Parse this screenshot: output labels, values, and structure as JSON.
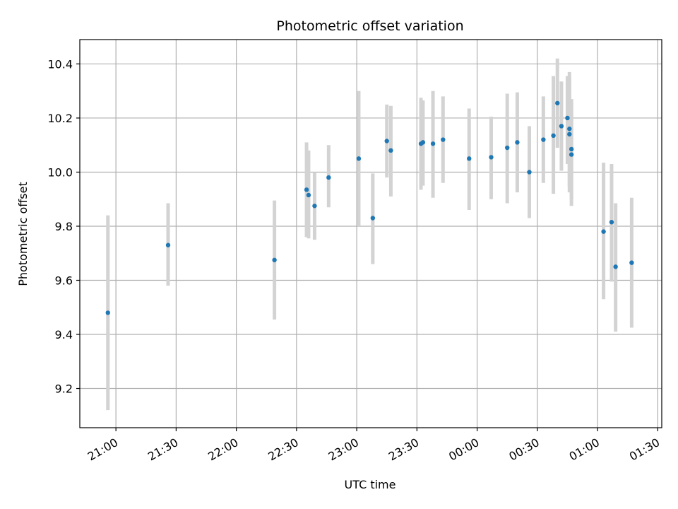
{
  "chart_data": {
    "type": "scatter",
    "title": "Photometric offset variation",
    "xlabel": "UTC time",
    "ylabel": "Photometric offset",
    "grid": true,
    "legend": "none",
    "colors": {
      "point": "#1f77b4",
      "errorbar": "#d3d3d3",
      "grid": "#b0b0b0",
      "axis": "#000000"
    },
    "xlim": [
      "20:42",
      "01:32"
    ],
    "ylim": [
      9.055,
      10.49
    ],
    "x_ticks": [
      "21:00",
      "21:30",
      "22:00",
      "22:30",
      "23:00",
      "23:30",
      "00:00",
      "00:30",
      "01:00",
      "01:30"
    ],
    "y_ticks": [
      "9.2",
      "9.4",
      "9.6",
      "9.8",
      "10.0",
      "10.2",
      "10.4"
    ],
    "points": [
      {
        "x": "20:56",
        "y": 9.48,
        "ylow": 9.12,
        "yhigh": 9.84
      },
      {
        "x": "21:26",
        "y": 9.73,
        "ylow": 9.58,
        "yhigh": 9.885
      },
      {
        "x": "22:19",
        "y": 9.675,
        "ylow": 9.455,
        "yhigh": 9.895
      },
      {
        "x": "22:35",
        "y": 9.935,
        "ylow": 9.76,
        "yhigh": 10.11
      },
      {
        "x": "22:36",
        "y": 9.915,
        "ylow": 9.755,
        "yhigh": 10.08
      },
      {
        "x": "22:39",
        "y": 9.875,
        "ylow": 9.75,
        "yhigh": 10.0
      },
      {
        "x": "22:46",
        "y": 9.98,
        "ylow": 9.87,
        "yhigh": 10.1
      },
      {
        "x": "23:01",
        "y": 10.05,
        "ylow": 9.8,
        "yhigh": 10.3
      },
      {
        "x": "23:08",
        "y": 9.83,
        "ylow": 9.66,
        "yhigh": 9.995
      },
      {
        "x": "23:15",
        "y": 10.115,
        "ylow": 9.98,
        "yhigh": 10.25
      },
      {
        "x": "23:17",
        "y": 10.08,
        "ylow": 9.91,
        "yhigh": 10.245
      },
      {
        "x": "23:32",
        "y": 10.105,
        "ylow": 9.935,
        "yhigh": 10.275
      },
      {
        "x": "23:33",
        "y": 10.11,
        "ylow": 9.95,
        "yhigh": 10.265
      },
      {
        "x": "23:38",
        "y": 10.105,
        "ylow": 9.905,
        "yhigh": 10.3
      },
      {
        "x": "23:43",
        "y": 10.12,
        "ylow": 9.96,
        "yhigh": 10.28
      },
      {
        "x": "23:56",
        "y": 10.05,
        "ylow": 9.86,
        "yhigh": 10.235
      },
      {
        "x": "00:07",
        "y": 10.055,
        "ylow": 9.9,
        "yhigh": 10.205
      },
      {
        "x": "00:15",
        "y": 10.09,
        "ylow": 9.885,
        "yhigh": 10.29
      },
      {
        "x": "00:20",
        "y": 10.11,
        "ylow": 9.925,
        "yhigh": 10.295
      },
      {
        "x": "00:26",
        "y": 10.0,
        "ylow": 9.83,
        "yhigh": 10.17
      },
      {
        "x": "00:33",
        "y": 10.12,
        "ylow": 9.96,
        "yhigh": 10.28
      },
      {
        "x": "00:38",
        "y": 10.135,
        "ylow": 9.92,
        "yhigh": 10.355
      },
      {
        "x": "00:40",
        "y": 10.255,
        "ylow": 10.09,
        "yhigh": 10.42
      },
      {
        "x": "00:42",
        "y": 10.17,
        "ylow": 10.005,
        "yhigh": 10.335
      },
      {
        "x": "00:45",
        "y": 10.2,
        "ylow": 10.03,
        "yhigh": 10.355
      },
      {
        "x": "00:46",
        "y": 10.16,
        "ylow": 9.945,
        "yhigh": 10.37
      },
      {
        "x": "00:46",
        "y": 10.14,
        "ylow": 9.925,
        "yhigh": 10.35
      },
      {
        "x": "00:47",
        "y": 10.085,
        "ylow": 9.9,
        "yhigh": 10.27
      },
      {
        "x": "00:47",
        "y": 10.065,
        "ylow": 9.875,
        "yhigh": 10.255
      },
      {
        "x": "01:03",
        "y": 9.78,
        "ylow": 9.53,
        "yhigh": 10.035
      },
      {
        "x": "01:07",
        "y": 9.815,
        "ylow": 9.595,
        "yhigh": 10.03
      },
      {
        "x": "01:09",
        "y": 9.65,
        "ylow": 9.41,
        "yhigh": 9.885
      },
      {
        "x": "01:17",
        "y": 9.665,
        "ylow": 9.425,
        "yhigh": 9.905
      }
    ]
  }
}
